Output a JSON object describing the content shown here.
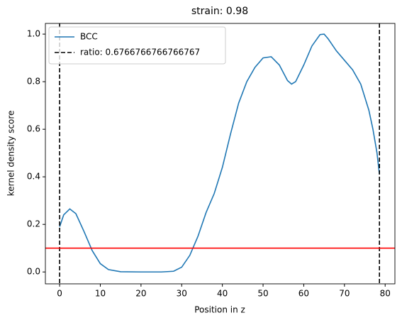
{
  "chart_data": {
    "type": "line",
    "title": "strain: 0.98",
    "xlabel": "Position in z",
    "ylabel": "kernel density score",
    "x": [
      0,
      1,
      2.5,
      4,
      6,
      8,
      10,
      12,
      15,
      20,
      25,
      28,
      30,
      32,
      34,
      36,
      38,
      40,
      42,
      44,
      46,
      48,
      50,
      52,
      54,
      56,
      57,
      58,
      60,
      62,
      64,
      65,
      66,
      68,
      70,
      72,
      74,
      76,
      77,
      78,
      78.6
    ],
    "series": [
      {
        "name": "BCC",
        "color": "#1f77b4",
        "values": [
          0.19,
          0.24,
          0.265,
          0.245,
          0.17,
          0.09,
          0.035,
          0.01,
          0.001,
          0,
          0,
          0.003,
          0.02,
          0.07,
          0.15,
          0.25,
          0.33,
          0.44,
          0.58,
          0.71,
          0.8,
          0.86,
          0.9,
          0.905,
          0.87,
          0.805,
          0.79,
          0.8,
          0.87,
          0.95,
          0.998,
          1.0,
          0.98,
          0.93,
          0.89,
          0.85,
          0.79,
          0.68,
          0.6,
          0.5,
          0.41
        ]
      }
    ],
    "vlines": {
      "name": "ratio: 0.6766766766766767",
      "color": "#000000",
      "x": [
        0,
        78.6
      ]
    },
    "hline": {
      "y": 0.1,
      "color": "#ff0000"
    },
    "xlim": [
      -3.5,
      82.4
    ],
    "ylim": [
      -0.05,
      1.045
    ],
    "xticks": [
      0,
      10,
      20,
      30,
      40,
      50,
      60,
      70,
      80
    ],
    "yticks": [
      {
        "value": 0,
        "label": "0.0"
      },
      0.2,
      0.4,
      0.6,
      0.8,
      {
        "value": 1,
        "label": "1.0"
      }
    ],
    "legend": "upper left"
  }
}
